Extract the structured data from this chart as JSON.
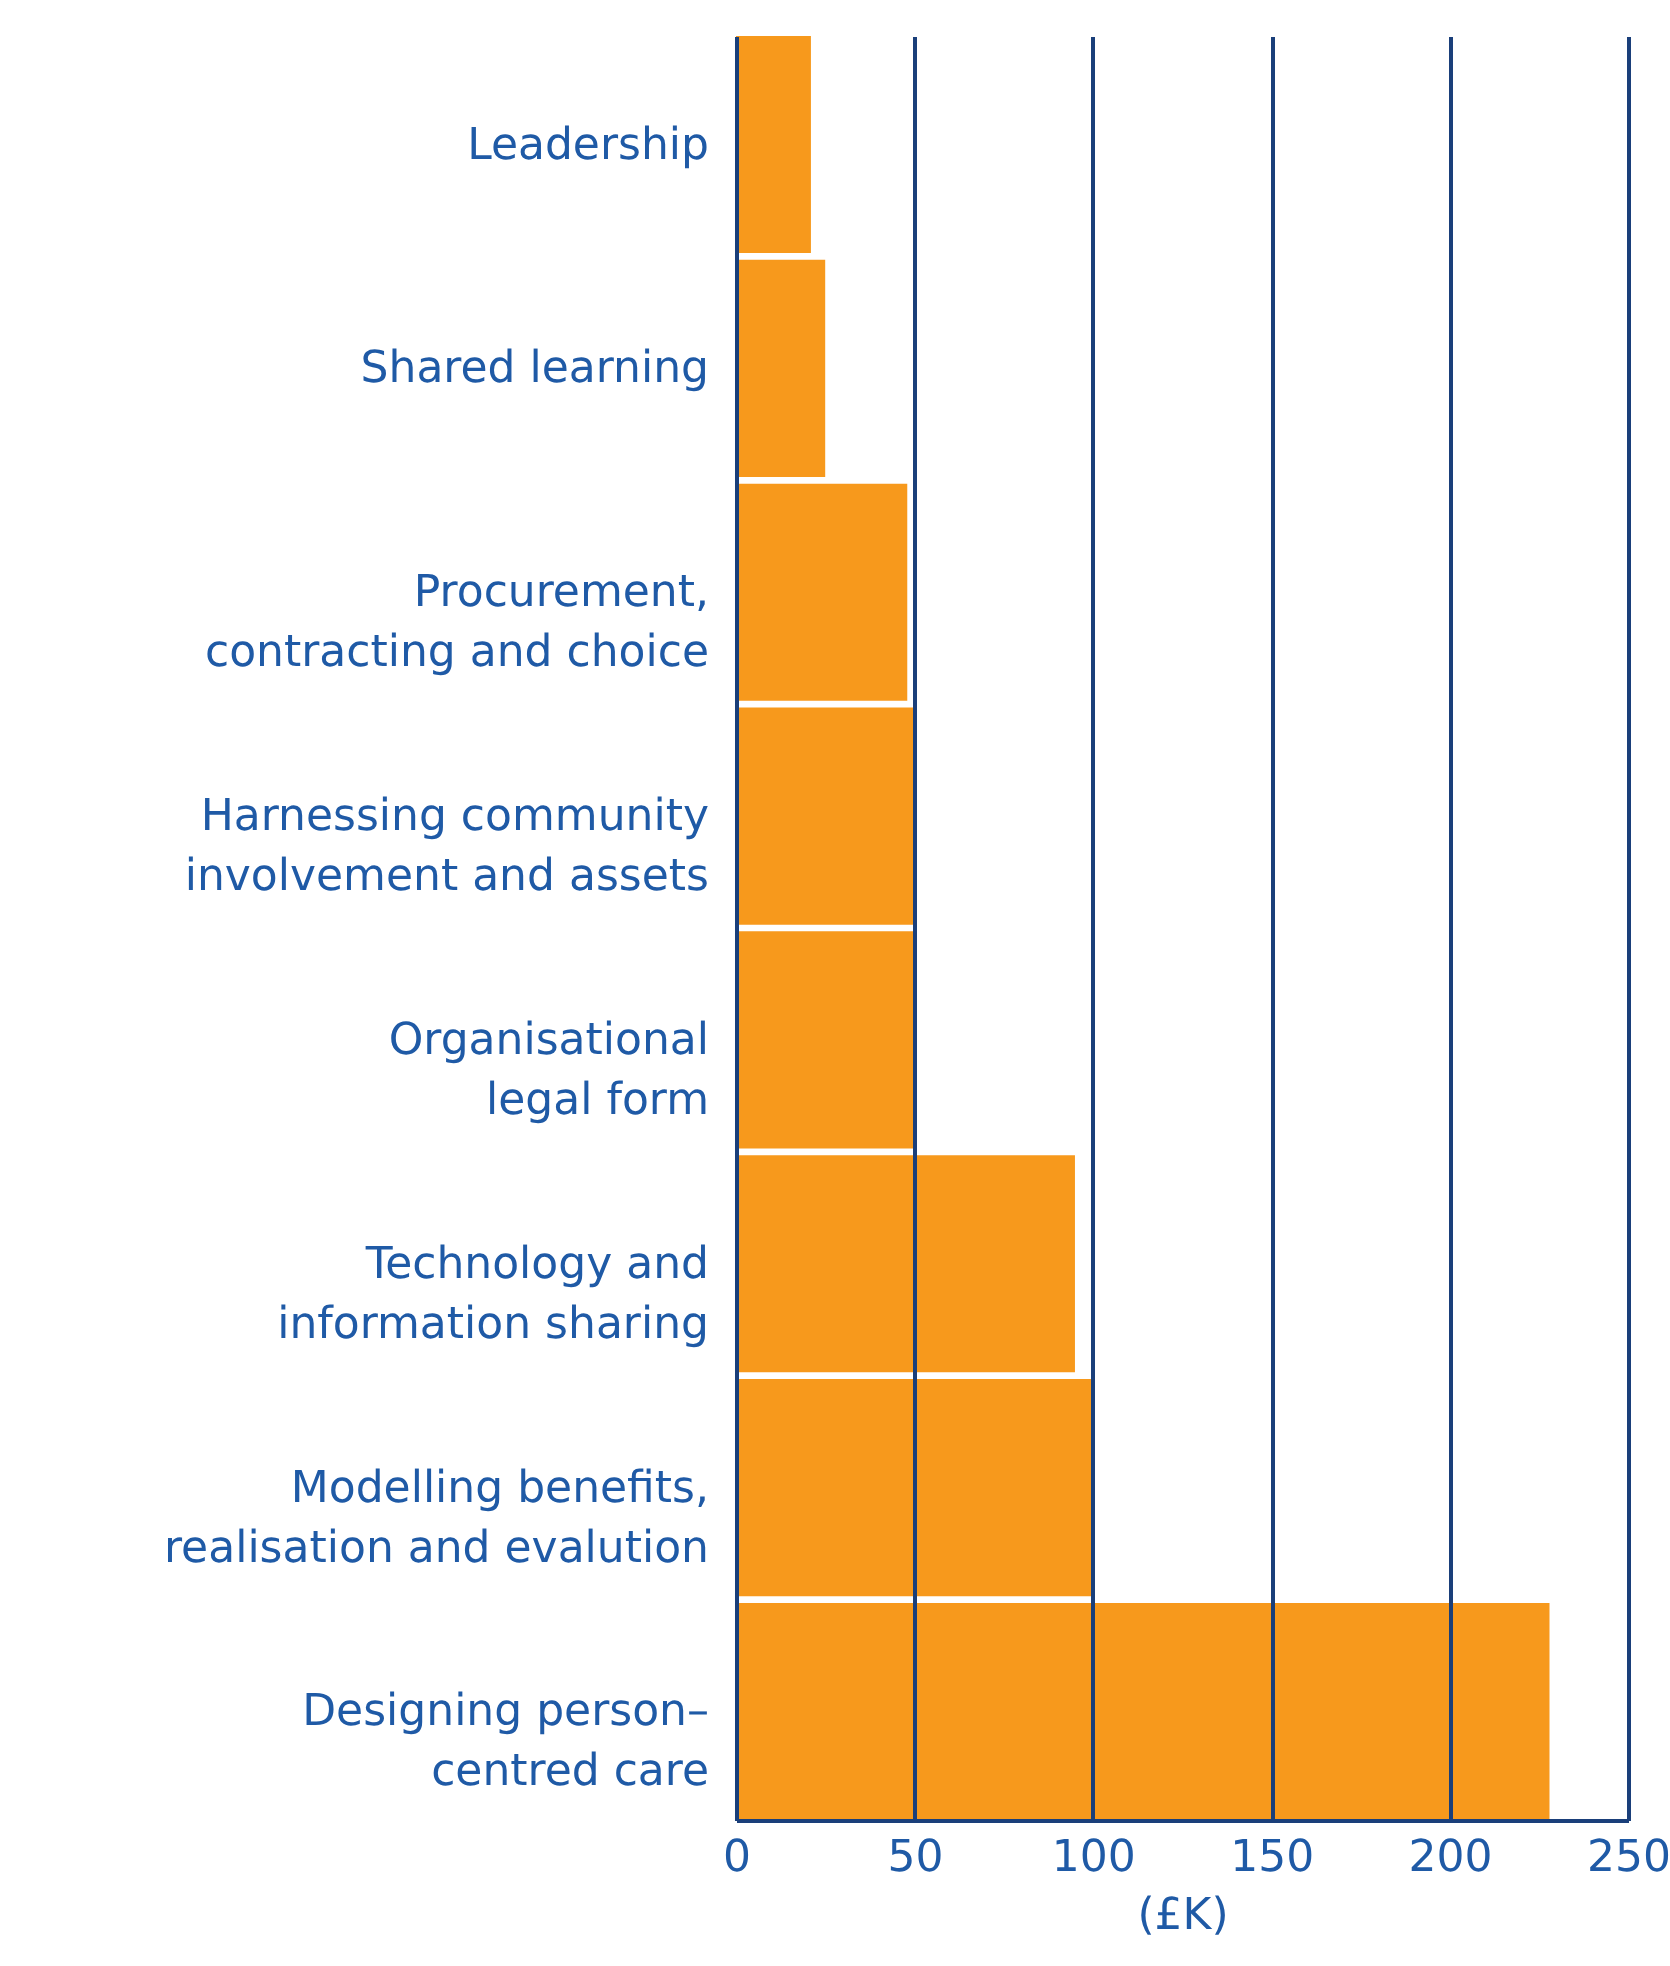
{
  "chart_data": {
    "type": "bar",
    "orientation": "horizontal",
    "xlabel": "(£K)",
    "categories": [
      "Leadership",
      "Shared learning",
      "Procurement,\ncontracting and choice",
      "Harnessing community\ninvolvement and assets",
      "Organisational\nlegal form",
      "Technology and\ninformation sharing",
      "Modelling benefits,\nrealisation and evalution",
      "Designing person–\ncentred care"
    ],
    "values": [
      21,
      25,
      48,
      50,
      50,
      95,
      100,
      228
    ],
    "color": "#f7991c",
    "xlim": [
      0,
      250
    ],
    "xticks": [
      0,
      50,
      100,
      150,
      200,
      250
    ],
    "grid": "x"
  }
}
